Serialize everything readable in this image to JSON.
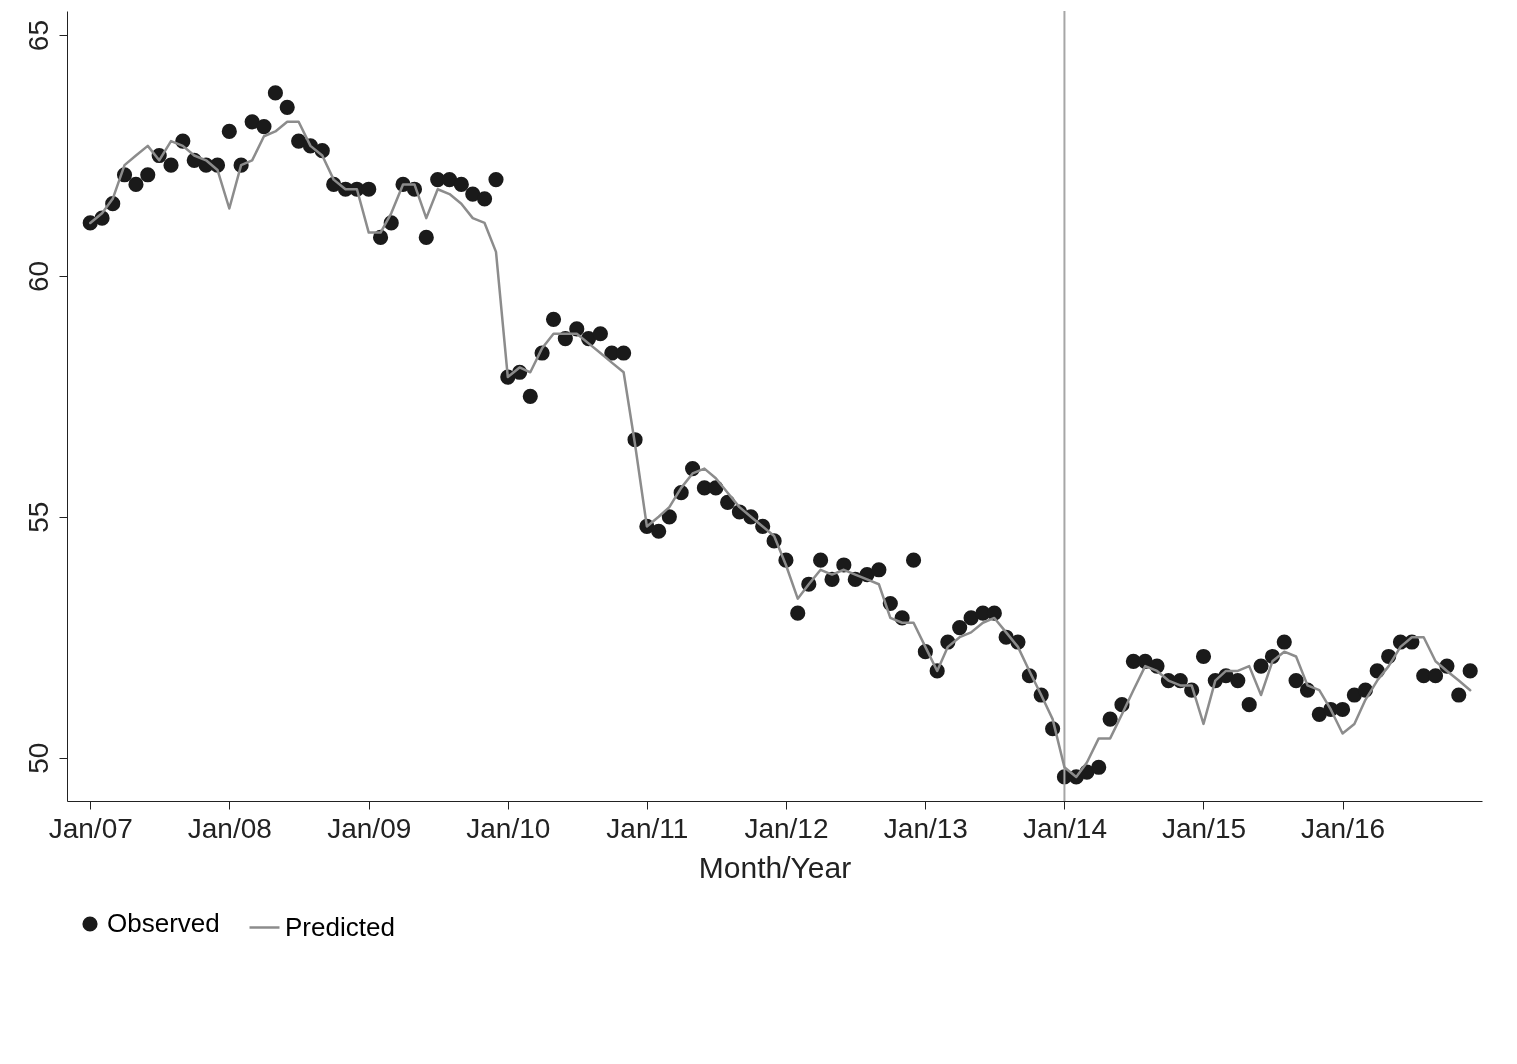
{
  "chart_data": {
    "type": "scatter",
    "xlabel": "Month/Year",
    "x": [
      "2007-01",
      "2007-02",
      "2007-03",
      "2007-04",
      "2007-05",
      "2007-06",
      "2007-07",
      "2007-08",
      "2007-09",
      "2007-10",
      "2007-11",
      "2007-12",
      "2008-01",
      "2008-02",
      "2008-03",
      "2008-04",
      "2008-05",
      "2008-06",
      "2008-07",
      "2008-08",
      "2008-09",
      "2008-10",
      "2008-11",
      "2008-12",
      "2009-01",
      "2009-02",
      "2009-03",
      "2009-04",
      "2009-05",
      "2009-06",
      "2009-07",
      "2009-08",
      "2009-09",
      "2009-10",
      "2009-11",
      "2009-12",
      "2010-01",
      "2010-02",
      "2010-03",
      "2010-04",
      "2010-05",
      "2010-06",
      "2010-07",
      "2010-08",
      "2010-09",
      "2010-10",
      "2010-11",
      "2010-12",
      "2011-01",
      "2011-02",
      "2011-03",
      "2011-04",
      "2011-05",
      "2011-06",
      "2011-07",
      "2011-08",
      "2011-09",
      "2011-10",
      "2011-11",
      "2011-12",
      "2012-01",
      "2012-02",
      "2012-03",
      "2012-04",
      "2012-05",
      "2012-06",
      "2012-07",
      "2012-08",
      "2012-09",
      "2012-10",
      "2012-11",
      "2012-12",
      "2013-01",
      "2013-02",
      "2013-03",
      "2013-04",
      "2013-05",
      "2013-06",
      "2013-07",
      "2013-08",
      "2013-09",
      "2013-10",
      "2013-11",
      "2013-12",
      "2014-01",
      "2014-02",
      "2014-03",
      "2014-04",
      "2014-05",
      "2014-06",
      "2014-07",
      "2014-08",
      "2014-09",
      "2014-10",
      "2014-11",
      "2014-12",
      "2015-01",
      "2015-02",
      "2015-03",
      "2015-04",
      "2015-05",
      "2015-06",
      "2015-07",
      "2015-08",
      "2015-09",
      "2015-10",
      "2015-11",
      "2015-12",
      "2016-01",
      "2016-02",
      "2016-03",
      "2016-04",
      "2016-05",
      "2016-06",
      "2016-07",
      "2016-08",
      "2016-09",
      "2016-10",
      "2016-11",
      "2016-12"
    ],
    "series": [
      {
        "name": "Observed",
        "type": "scatter",
        "color": "#1a1a1a",
        "marker": "circle",
        "values": [
          61.1,
          61.2,
          61.5,
          62.1,
          61.9,
          62.1,
          62.5,
          62.3,
          62.8,
          62.4,
          62.3,
          62.3,
          63.0,
          62.3,
          63.2,
          63.1,
          63.8,
          63.5,
          62.8,
          62.7,
          62.6,
          61.9,
          61.8,
          61.8,
          61.8,
          60.8,
          61.1,
          61.9,
          61.8,
          60.8,
          62.0,
          62.0,
          61.9,
          61.7,
          61.6,
          62.0,
          57.9,
          58.0,
          57.5,
          58.4,
          59.1,
          58.7,
          58.9,
          58.7,
          58.8,
          58.4,
          58.4,
          56.6,
          54.8,
          54.7,
          55.0,
          55.5,
          56.0,
          55.6,
          55.6,
          55.3,
          55.1,
          55.0,
          54.8,
          54.5,
          54.1,
          53.0,
          53.6,
          54.1,
          53.7,
          54.0,
          53.7,
          53.8,
          53.9,
          53.2,
          52.9,
          54.1,
          52.2,
          51.8,
          52.4,
          52.7,
          52.9,
          53.0,
          53.0,
          52.5,
          52.4,
          51.7,
          51.3,
          50.6,
          49.6,
          49.6,
          49.7,
          49.8,
          50.8,
          51.1,
          52.0,
          52.0,
          51.9,
          51.6,
          51.6,
          51.4,
          52.1,
          51.6,
          51.7,
          51.6,
          51.1,
          51.9,
          52.1,
          52.4,
          51.6,
          51.4,
          50.9,
          51.0,
          51.0,
          51.3,
          51.4,
          51.8,
          52.1,
          52.4,
          52.4,
          51.7,
          51.7,
          51.9,
          51.3,
          51.8
        ]
      },
      {
        "name": "Predicted",
        "type": "line",
        "color": "#8c8c8c",
        "line_style": "solid",
        "values": [
          61.1,
          61.3,
          61.6,
          62.3,
          62.5,
          62.7,
          62.4,
          62.8,
          62.7,
          62.5,
          62.4,
          62.2,
          61.4,
          62.3,
          62.4,
          62.9,
          63.0,
          63.2,
          63.2,
          62.7,
          62.5,
          62.0,
          61.8,
          61.8,
          60.9,
          60.9,
          61.3,
          61.9,
          61.9,
          61.2,
          61.8,
          61.7,
          61.5,
          61.2,
          61.1,
          60.5,
          57.9,
          58.1,
          58.0,
          58.5,
          58.8,
          58.8,
          58.8,
          58.6,
          58.4,
          58.2,
          58.0,
          56.5,
          54.8,
          55.0,
          55.2,
          55.6,
          55.9,
          56.0,
          55.8,
          55.5,
          55.2,
          55.0,
          54.8,
          54.6,
          54.0,
          53.3,
          53.6,
          53.9,
          53.8,
          53.9,
          53.8,
          53.7,
          53.6,
          52.9,
          52.8,
          52.8,
          52.3,
          51.8,
          52.3,
          52.5,
          52.6,
          52.8,
          52.9,
          52.6,
          52.3,
          51.8,
          51.3,
          50.8,
          49.8,
          49.6,
          49.9,
          50.4,
          50.4,
          50.9,
          51.4,
          51.9,
          51.8,
          51.6,
          51.5,
          51.5,
          50.7,
          51.6,
          51.8,
          51.8,
          51.9,
          51.3,
          52.0,
          52.2,
          52.1,
          51.5,
          51.4,
          51.0,
          50.5,
          50.7,
          51.2,
          51.6,
          51.9,
          52.3,
          52.5,
          52.5,
          52.0,
          51.8,
          51.6,
          51.4
        ]
      }
    ],
    "xlim": [
      "2006-11",
      "2017-01"
    ],
    "xticks": [
      {
        "value": "2007-01",
        "label": "Jan/07"
      },
      {
        "value": "2008-01",
        "label": "Jan/08"
      },
      {
        "value": "2009-01",
        "label": "Jan/09"
      },
      {
        "value": "2010-01",
        "label": "Jan/10"
      },
      {
        "value": "2011-01",
        "label": "Jan/11"
      },
      {
        "value": "2012-01",
        "label": "Jan/12"
      },
      {
        "value": "2013-01",
        "label": "Jan/13"
      },
      {
        "value": "2014-01",
        "label": "Jan/14"
      },
      {
        "value": "2015-01",
        "label": "Jan/15"
      },
      {
        "value": "2016-01",
        "label": "Jan/16"
      }
    ],
    "ylim": [
      49.1,
      65.5
    ],
    "yticks": [
      50,
      55,
      60,
      65
    ],
    "ref_lines": [
      {
        "axis": "x",
        "value": "2014-01",
        "color": "#a6a6a6"
      }
    ],
    "grid": false,
    "legend": "bottom"
  }
}
